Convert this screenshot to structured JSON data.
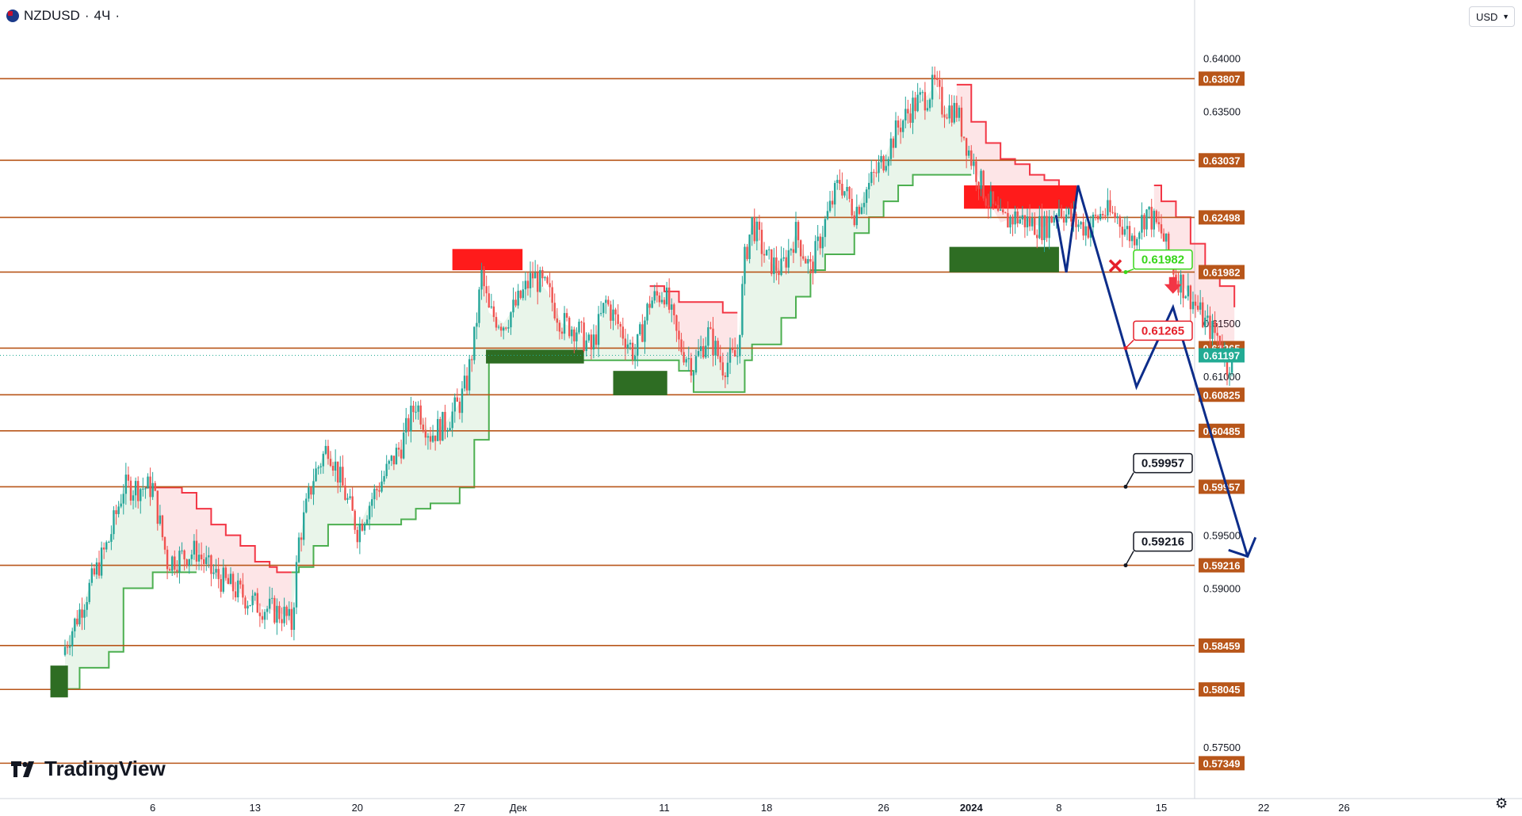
{
  "header": {
    "symbol": "NZDUSD",
    "sep": "·",
    "timeframe": "4Ч",
    "dot": "·"
  },
  "currency_button": {
    "label": "USD",
    "icon": "chevron-down-icon"
  },
  "branding": {
    "name": "TradingView",
    "icon": "tradingview-logo-icon"
  },
  "settings_icon": "gear-icon",
  "chart_data": {
    "type": "candlestick",
    "symbol": "NZDUSD",
    "interval": "4Ч",
    "y_range": [
      0.5715,
      0.6425
    ],
    "x_ticks": [
      {
        "label": "6",
        "day": 6
      },
      {
        "label": "13",
        "day": 13
      },
      {
        "label": "20",
        "day": 20
      },
      {
        "label": "27",
        "day": 27
      },
      {
        "label": "Дек",
        "day": 31
      },
      {
        "label": "11",
        "day": 41
      },
      {
        "label": "18",
        "day": 48
      },
      {
        "label": "26",
        "day": 56
      },
      {
        "label": "2024",
        "day": 62
      },
      {
        "label": "8",
        "day": 68
      },
      {
        "label": "15",
        "day": 75
      },
      {
        "label": "22",
        "day": 82
      },
      {
        "label": "26",
        "day": 87.5
      }
    ],
    "y_ticks": [
      "0.64000",
      "0.63500",
      "0.61500",
      "0.61000",
      "0.59500",
      "0.59000",
      "0.57500"
    ],
    "levels": [
      {
        "value": 0.63807,
        "label": "0.63807"
      },
      {
        "value": 0.63037,
        "label": "0.63037"
      },
      {
        "value": 0.62498,
        "label": "0.62498"
      },
      {
        "value": 0.61982,
        "label": "0.61982"
      },
      {
        "value": 0.61265,
        "label": "0.61265"
      },
      {
        "value": 0.60825,
        "label": "0.60825"
      },
      {
        "value": 0.60485,
        "label": "0.60485"
      },
      {
        "value": 0.59957,
        "label": "0.59957"
      },
      {
        "value": 0.59216,
        "label": "0.59216"
      },
      {
        "value": 0.58459,
        "label": "0.58459"
      },
      {
        "value": 0.58045,
        "label": "0.58045"
      },
      {
        "value": 0.57349,
        "label": "0.57349"
      }
    ],
    "current_price": {
      "value": 0.61197,
      "label": "0.61197"
    },
    "close_path": [
      [
        0,
        0.5845
      ],
      [
        3,
        0.5945
      ],
      [
        4,
        0.5995
      ],
      [
        6,
        0.5995
      ],
      [
        7,
        0.5925
      ],
      [
        9,
        0.5935
      ],
      [
        10,
        0.5915
      ],
      [
        13,
        0.5885
      ],
      [
        15,
        0.5875
      ],
      [
        15.5,
        0.5865
      ],
      [
        16,
        0.5945
      ],
      [
        17,
        0.6005
      ],
      [
        18,
        0.6035
      ],
      [
        19,
        0.5995
      ],
      [
        20,
        0.5955
      ],
      [
        21,
        0.5985
      ],
      [
        23,
        0.6035
      ],
      [
        24,
        0.6075
      ],
      [
        25,
        0.6045
      ],
      [
        26,
        0.6055
      ],
      [
        27,
        0.6075
      ],
      [
        27.5,
        0.6095
      ],
      [
        28,
        0.6135
      ],
      [
        28.5,
        0.6195
      ],
      [
        29,
        0.616
      ],
      [
        30,
        0.615
      ],
      [
        31,
        0.617
      ],
      [
        32,
        0.6195
      ],
      [
        33,
        0.618
      ],
      [
        34,
        0.615
      ],
      [
        35,
        0.6145
      ],
      [
        36,
        0.6125
      ],
      [
        37,
        0.617
      ],
      [
        38,
        0.6145
      ],
      [
        39,
        0.612
      ],
      [
        40,
        0.617
      ],
      [
        41,
        0.618
      ],
      [
        42,
        0.613
      ],
      [
        43,
        0.611
      ],
      [
        44,
        0.614
      ],
      [
        45,
        0.611
      ],
      [
        46,
        0.612
      ],
      [
        46.5,
        0.621
      ],
      [
        47,
        0.6245
      ],
      [
        48,
        0.621
      ],
      [
        49,
        0.62
      ],
      [
        50,
        0.6235
      ],
      [
        51,
        0.62
      ],
      [
        52,
        0.6245
      ],
      [
        53,
        0.6285
      ],
      [
        54,
        0.6255
      ],
      [
        55,
        0.628
      ],
      [
        56,
        0.6305
      ],
      [
        57,
        0.6335
      ],
      [
        58,
        0.6355
      ],
      [
        59,
        0.6365
      ],
      [
        59.5,
        0.6375
      ],
      [
        60,
        0.6355
      ],
      [
        61,
        0.635
      ],
      [
        62,
        0.6305
      ],
      [
        63,
        0.627
      ],
      [
        64,
        0.6245
      ],
      [
        65,
        0.625
      ],
      [
        66,
        0.6245
      ],
      [
        67,
        0.624
      ],
      [
        68,
        0.626
      ],
      [
        69,
        0.6245
      ],
      [
        70,
        0.624
      ],
      [
        71,
        0.6255
      ],
      [
        72,
        0.625
      ],
      [
        73,
        0.623
      ],
      [
        74,
        0.6255
      ],
      [
        75,
        0.6235
      ],
      [
        76,
        0.6195
      ],
      [
        77,
        0.6175
      ],
      [
        78,
        0.615
      ],
      [
        79,
        0.6135
      ],
      [
        79.5,
        0.611
      ],
      [
        80,
        0.6125
      ]
    ],
    "buy_stop": [
      [
        0,
        0.5805
      ],
      [
        1,
        0.5825
      ],
      [
        3,
        0.584
      ],
      [
        4,
        0.59
      ],
      [
        6,
        0.5915
      ],
      [
        9,
        0.5915
      ],
      [
        15.5,
        0.5915
      ],
      [
        16,
        0.592
      ],
      [
        17,
        0.594
      ],
      [
        18,
        0.596
      ],
      [
        22,
        0.596
      ],
      [
        23,
        0.5965
      ],
      [
        24,
        0.5975
      ],
      [
        25,
        0.598
      ],
      [
        27,
        0.5995
      ],
      [
        28,
        0.604
      ],
      [
        29,
        0.612
      ],
      [
        31,
        0.6115
      ],
      [
        35,
        0.6115
      ],
      [
        37,
        0.6115
      ],
      [
        40,
        0.6115
      ],
      [
        42,
        0.6105
      ],
      [
        43,
        0.6085
      ],
      [
        44,
        0.6085
      ],
      [
        46,
        0.6085
      ],
      [
        46.5,
        0.6115
      ],
      [
        47,
        0.613
      ],
      [
        48,
        0.613
      ],
      [
        49,
        0.6155
      ],
      [
        50,
        0.6175
      ],
      [
        51,
        0.62
      ],
      [
        52,
        0.6215
      ],
      [
        53,
        0.6215
      ],
      [
        54,
        0.6235
      ],
      [
        55,
        0.625
      ],
      [
        56,
        0.6265
      ],
      [
        57,
        0.628
      ],
      [
        58,
        0.629
      ],
      [
        59,
        0.629
      ],
      [
        60,
        0.629
      ],
      [
        61,
        0.629
      ],
      [
        62,
        0.629
      ]
    ],
    "sell_stop": [
      [
        5.5,
        0.5995
      ],
      [
        8,
        0.599
      ],
      [
        9,
        0.5975
      ],
      [
        10,
        0.596
      ],
      [
        11,
        0.595
      ],
      [
        12,
        0.594
      ],
      [
        13,
        0.5925
      ],
      [
        14,
        0.592
      ],
      [
        14.5,
        0.5915
      ],
      [
        15.5,
        0.5915
      ],
      [
        40,
        0.6185
      ],
      [
        41,
        0.618
      ],
      [
        42,
        0.617
      ],
      [
        44,
        0.617
      ],
      [
        45,
        0.616
      ],
      [
        46,
        0.616
      ],
      [
        61,
        0.6375
      ],
      [
        62,
        0.634
      ],
      [
        63,
        0.632
      ],
      [
        64,
        0.6305
      ],
      [
        65,
        0.63
      ],
      [
        66,
        0.629
      ],
      [
        67,
        0.6285
      ],
      [
        68,
        0.628
      ],
      [
        74.5,
        0.628
      ],
      [
        75,
        0.6265
      ],
      [
        76,
        0.625
      ],
      [
        77,
        0.6225
      ],
      [
        78,
        0.62
      ],
      [
        79,
        0.6185
      ],
      [
        80,
        0.6165
      ]
    ],
    "zones": [
      {
        "kind": "supply",
        "x0": 26.5,
        "x1": 31.3,
        "y0": 0.622,
        "y1": 0.62
      },
      {
        "kind": "demand",
        "x0": 28.8,
        "x1": 35.5,
        "y0": 0.6125,
        "y1": 0.6112
      },
      {
        "kind": "demand",
        "x0": 37.5,
        "x1": 41.2,
        "y0": 0.6105,
        "y1": 0.6082
      },
      {
        "kind": "supply",
        "x0": 61.5,
        "x1": 69.2,
        "y0": 0.628,
        "y1": 0.6258
      },
      {
        "kind": "demand",
        "x0": 60.5,
        "x1": 68.0,
        "y0": 0.6222,
        "y1": 0.6198
      },
      {
        "kind": "demand",
        "x0": -1,
        "x1": 0.2,
        "y0": 0.5827,
        "y1": 0.5797
      }
    ],
    "forecast_path": [
      [
        67.8,
        0.6252
      ],
      [
        68.5,
        0.6198
      ],
      [
        69.3,
        0.628
      ],
      [
        73.3,
        0.609
      ],
      [
        75.8,
        0.6165
      ],
      [
        80.9,
        0.593
      ]
    ],
    "forecast_arrow_tip": {
      "day": 80.9,
      "value": 0.593
    },
    "signal_arrow": {
      "day": 75.8,
      "value": 0.6183
    },
    "callouts": [
      {
        "label": "0.61982",
        "value": 0.61982,
        "style": "green",
        "box_value": 0.621,
        "status": "x"
      },
      {
        "label": "0.61265",
        "value": 0.61265,
        "style": "red",
        "box_value": 0.6143
      },
      {
        "label": "0.59957",
        "value": 0.59957,
        "style": "black",
        "box_value": 0.6018
      },
      {
        "label": "0.59216",
        "value": 0.59216,
        "style": "black",
        "box_value": 0.5944
      }
    ],
    "colors": {
      "level": "#b8561a",
      "candle_up": "#26a69a",
      "candle_down": "#ef5350",
      "supply": "#ff1b1b",
      "demand": "#2e6d23",
      "buy_stop": "#4caf50",
      "sell_stop": "#f23645",
      "forecast": "#0d2d8a",
      "current": "#22ab94"
    }
  }
}
